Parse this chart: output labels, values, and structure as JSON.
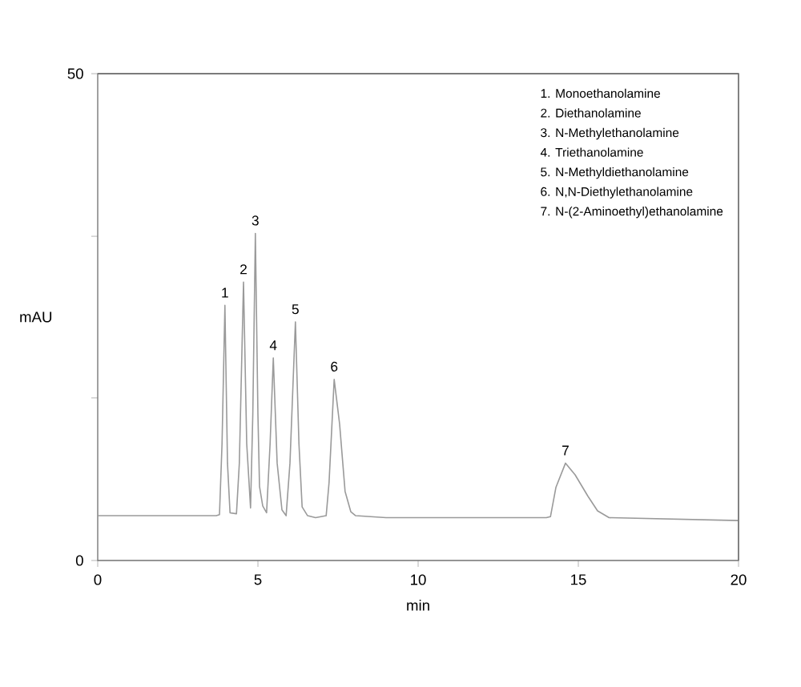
{
  "chart_data": {
    "type": "line",
    "xlabel": "min",
    "ylabel": "mAU",
    "xlim": [
      0,
      20
    ],
    "ylim": [
      0,
      50
    ],
    "xticks": [
      0,
      5,
      10,
      15,
      20
    ],
    "yticks": [
      0,
      {
        "value": 16.7,
        "label": null
      },
      {
        "value": 33.3,
        "label": null
      },
      50
    ],
    "x": [
      0,
      3.7,
      3.8,
      3.88,
      3.97,
      4.05,
      4.13,
      4.33,
      4.42,
      4.55,
      4.65,
      4.77,
      4.84,
      4.92,
      5.0,
      5.05,
      5.15,
      5.27,
      5.38,
      5.48,
      5.6,
      5.75,
      5.88,
      6.0,
      6.17,
      6.28,
      6.38,
      6.55,
      6.8,
      7.13,
      7.22,
      7.38,
      7.55,
      7.72,
      7.9,
      8.05,
      9,
      12,
      14.0,
      14.13,
      14.3,
      14.6,
      14.9,
      15.3,
      15.6,
      15.96,
      20
    ],
    "series": [
      {
        "color": "#9a9a9a",
        "values": [
          4.6,
          4.6,
          4.7,
          12,
          26.2,
          10,
          4.9,
          4.8,
          10,
          28.6,
          12,
          5.4,
          15,
          33.6,
          15,
          7.6,
          5.6,
          4.9,
          12,
          20.8,
          10,
          5.2,
          4.6,
          10,
          24.5,
          12,
          5.5,
          4.6,
          4.4,
          4.6,
          8,
          18.6,
          14,
          7.1,
          5,
          4.6,
          4.4,
          4.4,
          4.4,
          4.5,
          7.5,
          10,
          8.8,
          6.6,
          5.1,
          4.4,
          4.1
        ]
      }
    ],
    "annotations": [
      {
        "text": "1",
        "x": 3.97,
        "y": 26.2
      },
      {
        "text": "2",
        "x": 4.55,
        "y": 28.6
      },
      {
        "text": "3",
        "x": 4.92,
        "y": 33.6
      },
      {
        "text": "4",
        "x": 5.48,
        "y": 20.8
      },
      {
        "text": "5",
        "x": 6.17,
        "y": 24.5
      },
      {
        "text": "6",
        "x": 7.38,
        "y": 18.6
      },
      {
        "text": "7",
        "x": 14.6,
        "y": 10
      },
      "1. Monoethanolamine",
      "2. Diethanolamine",
      "3. N-Methylethanolamine",
      "4. Triethanolamine",
      "5. N-Methyldiethanolamine",
      "6. N,N-Diethylethanolamine",
      "7. N-(2-Aminoethyl)ethanolamine"
    ]
  }
}
